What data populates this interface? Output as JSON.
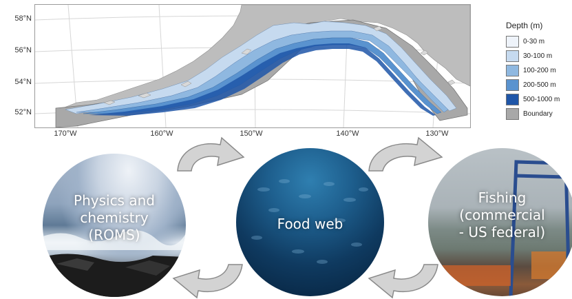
{
  "map": {
    "lat_labels": [
      "58°N",
      "56°N",
      "54°N",
      "52°N"
    ],
    "lon_labels": [
      "170°W",
      "160°W",
      "150°W",
      "140°W",
      "130°W"
    ]
  },
  "legend": {
    "title": "Depth (m)",
    "items": [
      {
        "label": "0-30 m",
        "color": "#eef3fa"
      },
      {
        "label": "30-100 m",
        "color": "#c6daef"
      },
      {
        "label": "100-200 m",
        "color": "#8fb8e0"
      },
      {
        "label": "200-500 m",
        "color": "#5a93cf"
      },
      {
        "label": "500-1000 m",
        "color": "#1f56a8"
      },
      {
        "label": "Boundary",
        "color": "#a8a8a8"
      }
    ]
  },
  "circles": {
    "physics": "Physics and\nchemistry\n(ROMS)",
    "food_web": "Food web",
    "fishing": "Fishing\n(commercial\n- US federal)"
  },
  "colors": {
    "arrow_fill": "#d3d3d3",
    "arrow_stroke": "#8a8a8a",
    "land": "#bdbdbd"
  }
}
